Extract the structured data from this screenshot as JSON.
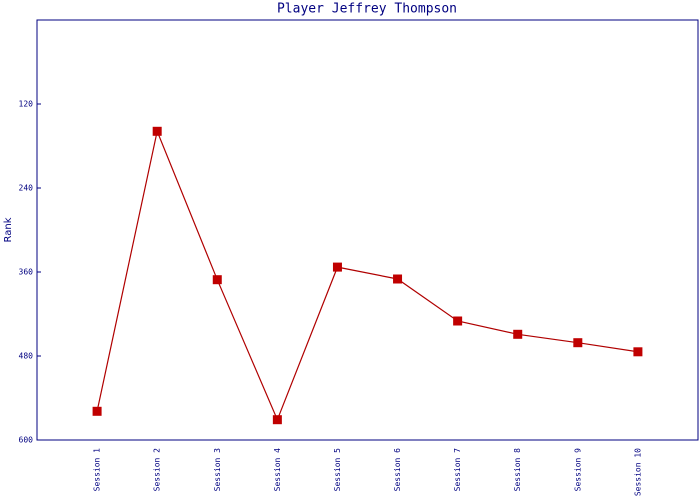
{
  "chart_data": {
    "type": "line",
    "title": "Player Jeffrey Thompson",
    "y_label": "Rank",
    "categories": [
      "Session 1",
      "Session 2",
      "Session 3",
      "Session 4",
      "Session 5",
      "Session 6",
      "Session 7",
      "Session 8",
      "Session 9",
      "Session 10"
    ],
    "values": [
      559,
      159,
      371,
      571,
      353,
      370,
      430,
      449,
      461,
      474
    ],
    "color": "#b00000",
    "marker_color": "#c00000",
    "ylim": [
      0,
      600
    ],
    "yticks": [
      120,
      240,
      360,
      480,
      600
    ],
    "y_inverted": true
  }
}
